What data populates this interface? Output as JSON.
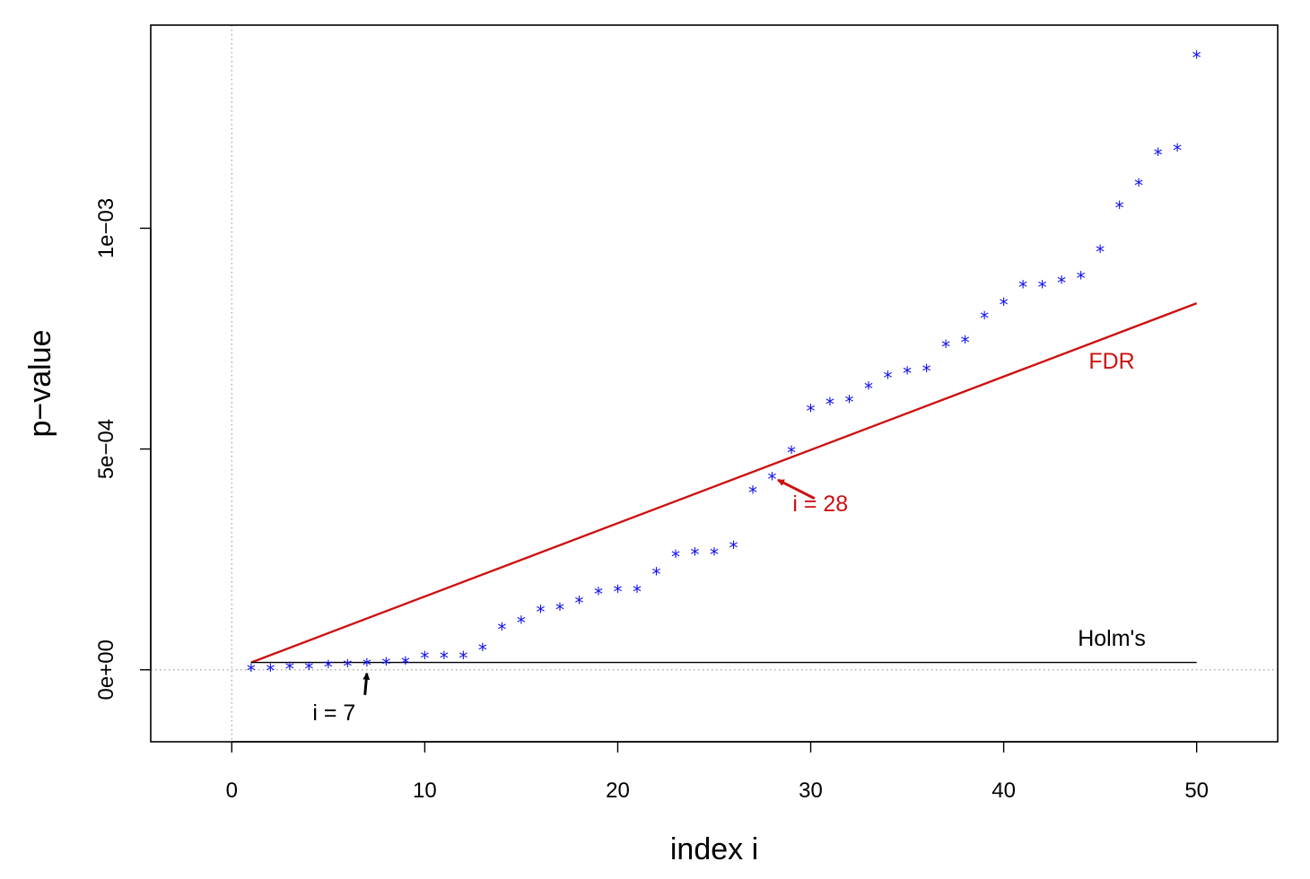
{
  "chart_data": {
    "type": "scatter",
    "xlabel": "index i",
    "ylabel": "p−value",
    "xlim": [
      -4.2,
      54.2
    ],
    "ylim": [
      -0.000163,
      0.00146
    ],
    "x_ticks": [
      0,
      10,
      20,
      30,
      40,
      50
    ],
    "x_tick_labels": [
      "0",
      "10",
      "20",
      "30",
      "40",
      "50"
    ],
    "y_ticks": [
      0,
      0.0005,
      0.001
    ],
    "y_tick_labels": [
      "0e+00",
      "5e−04",
      "1e−03"
    ],
    "grid": false,
    "reference_lines": [
      {
        "orientation": "vertical",
        "value": 0,
        "style": "dotted",
        "color": "#a0a0a0"
      },
      {
        "orientation": "horizontal",
        "value": 0,
        "style": "dotted",
        "color": "#a0a0a0"
      }
    ],
    "series": [
      {
        "kind": "points",
        "marker": "*",
        "color": "#1010ee",
        "x": [
          1,
          2,
          3,
          4,
          5,
          6,
          7,
          8,
          9,
          10,
          11,
          12,
          13,
          14,
          15,
          16,
          17,
          18,
          19,
          20,
          21,
          22,
          23,
          24,
          25,
          26,
          27,
          28,
          29,
          30,
          31,
          32,
          33,
          34,
          35,
          36,
          37,
          38,
          39,
          40,
          41,
          42,
          43,
          44,
          45,
          46,
          47,
          48,
          49,
          50
        ],
        "y": [
          2e-06,
          2e-06,
          6e-06,
          6e-06,
          1e-05,
          1.2e-05,
          1.4e-05,
          1.6e-05,
          1.8e-05,
          3e-05,
          3e-05,
          3e-05,
          4.8e-05,
          9.5e-05,
          0.00011,
          0.000135,
          0.00014,
          0.000155,
          0.000175,
          0.00018,
          0.00018,
          0.00022,
          0.00026,
          0.000265,
          0.000265,
          0.00028,
          0.000405,
          0.000435,
          0.000495,
          0.00059,
          0.000605,
          0.00061,
          0.00064,
          0.000665,
          0.000675,
          0.00068,
          0.000735,
          0.000745,
          0.0008,
          0.00083,
          0.00087,
          0.00087,
          0.00088,
          0.00089,
          0.00095,
          0.00105,
          0.0011,
          0.00117,
          0.00118,
          0.00139
        ]
      },
      {
        "name": "FDR",
        "kind": "line",
        "color": "#cc1111",
        "x": [
          1,
          50
        ],
        "y": [
          1.66e-05,
          0.00083
        ]
      },
      {
        "name": "Holm's",
        "kind": "line",
        "color": "#000000",
        "x": [
          1,
          50
        ],
        "y": [
          1.66e-05,
          1.66e-05
        ]
      }
    ],
    "annotations": [
      {
        "text": "FDR",
        "color": "#cc1111",
        "x": 45.6,
        "y": 0.0007
      },
      {
        "text": "Holm's",
        "color": "#000000",
        "x": 45.6,
        "y": 7.25e-05
      },
      {
        "text": "i = 28",
        "color": "#cc1111",
        "x": 30.5,
        "y": 0.000377,
        "arrow_from": [
          30.2,
          0.000388
        ],
        "arrow_to": [
          28.3,
          0.00043
        ]
      },
      {
        "text": "i = 7",
        "color": "#000000",
        "x": 5.3,
        "y": -9.55e-05,
        "arrow_from": [
          6.9,
          -5.7e-05
        ],
        "arrow_to": [
          7.0,
          -8e-06
        ]
      }
    ]
  }
}
